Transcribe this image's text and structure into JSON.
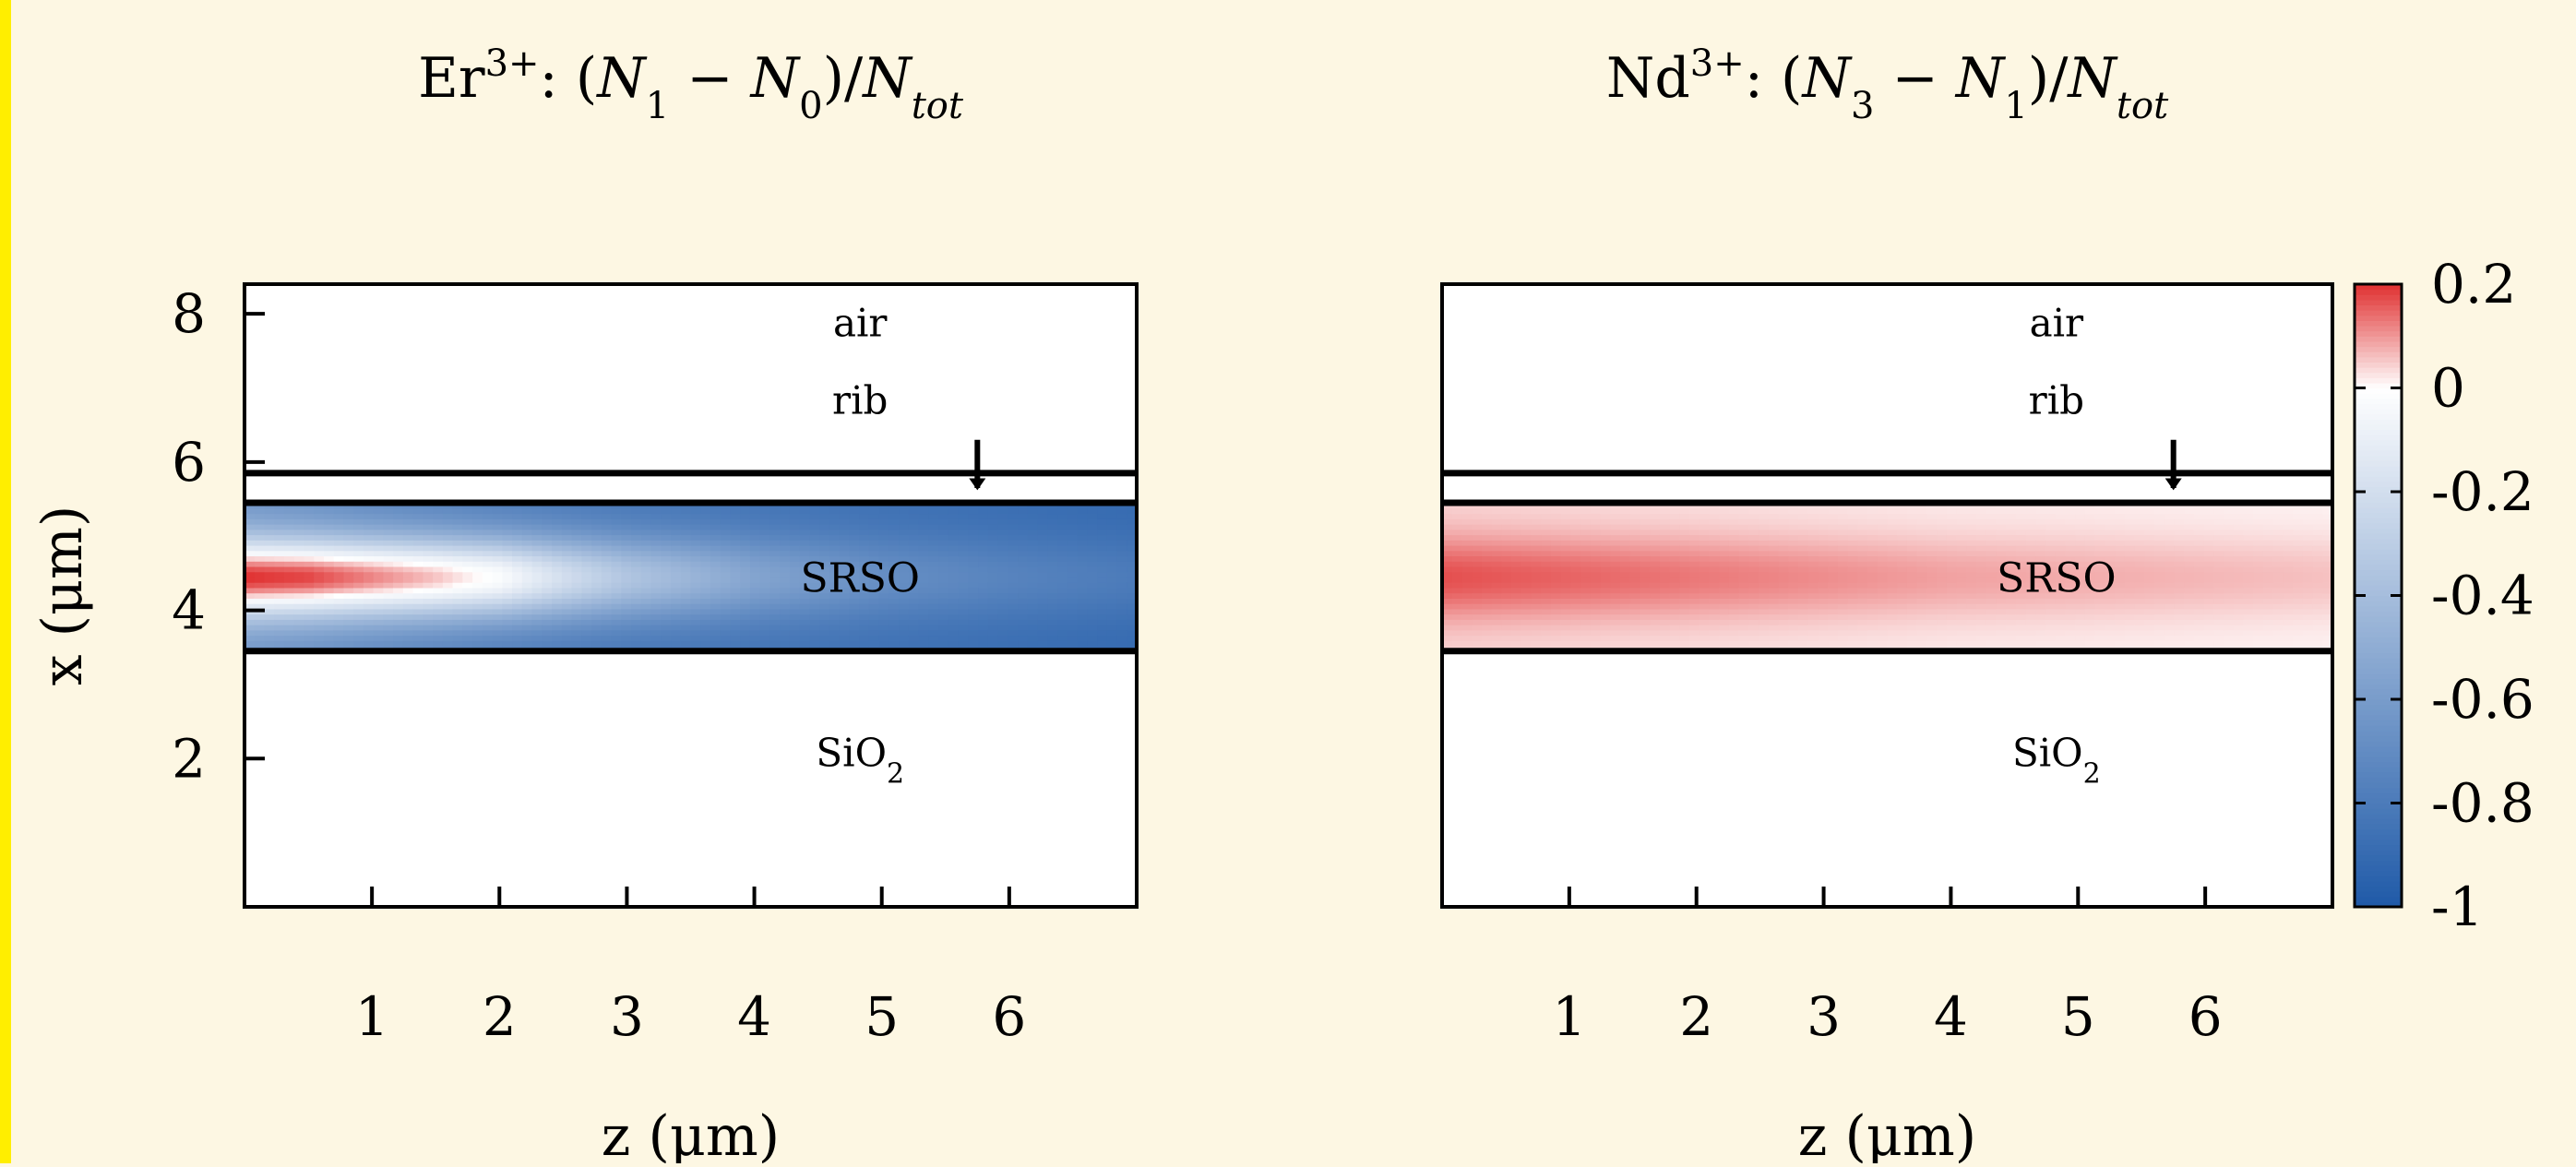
{
  "chart_data": [
    {
      "type": "heatmap",
      "title": "Er3+: (N1 − N0)/Ntot",
      "title_parts": {
        "element": "Er",
        "superscript": "3+",
        "expr_a": "N",
        "sub_a": "1",
        "expr_b": "N",
        "sub_b": "0",
        "denom": "N",
        "sub_denom": "tot"
      },
      "xlabel": "z (μm)",
      "ylabel": "x (μm)",
      "xlim": [
        0,
        7
      ],
      "ylim": [
        0,
        8.4
      ],
      "xticks": [
        1,
        2,
        3,
        4,
        5,
        6
      ],
      "yticks": [
        2,
        4,
        6,
        8
      ],
      "layers": [
        {
          "name": "air",
          "label": "air",
          "x_range": [
            5.85,
            8.4
          ]
        },
        {
          "name": "rib",
          "label": "rib",
          "x_range": [
            5.45,
            5.85
          ]
        },
        {
          "name": "SRSO",
          "label": "SRSO",
          "x_range": [
            3.45,
            5.45
          ]
        },
        {
          "name": "SiO2",
          "label": "SiO",
          "label_sub": "2",
          "x_range": [
            0,
            3.45
          ]
        }
      ],
      "boundaries": [
        5.85,
        5.45,
        3.45
      ],
      "rib_arrow_z": 5.75,
      "field": {
        "region_x": [
          3.45,
          5.45
        ],
        "z_samples": [
          0.0,
          0.5,
          1.0,
          1.5,
          2.0,
          2.5,
          3.0,
          4.0,
          5.0,
          6.0,
          7.0
        ],
        "core_values": [
          0.2,
          0.18,
          0.12,
          0.06,
          -0.02,
          -0.2,
          -0.35,
          -0.55,
          -0.68,
          -0.75,
          -0.8
        ],
        "edge_values": [
          -0.65,
          -0.68,
          -0.72,
          -0.75,
          -0.78,
          -0.8,
          -0.82,
          -0.84,
          -0.86,
          -0.88,
          -0.9
        ],
        "core_center_x": 4.45
      }
    },
    {
      "type": "heatmap",
      "title": "Nd3+: (N3 − N1)/Ntot",
      "title_parts": {
        "element": "Nd",
        "superscript": "3+",
        "expr_a": "N",
        "sub_a": "3",
        "expr_b": "N",
        "sub_b": "1",
        "denom": "N",
        "sub_denom": "tot"
      },
      "xlabel": "z (μm)",
      "ylabel": "",
      "xlim": [
        0,
        7
      ],
      "ylim": [
        0,
        8.4
      ],
      "xticks": [
        1,
        2,
        3,
        4,
        5,
        6
      ],
      "yticks": [],
      "layers": [
        {
          "name": "air",
          "label": "air",
          "x_range": [
            5.85,
            8.4
          ]
        },
        {
          "name": "rib",
          "label": "rib",
          "x_range": [
            5.45,
            5.85
          ]
        },
        {
          "name": "SRSO",
          "label": "SRSO",
          "x_range": [
            3.45,
            5.45
          ]
        },
        {
          "name": "SiO2",
          "label": "SiO",
          "label_sub": "2",
          "x_range": [
            0,
            3.45
          ]
        }
      ],
      "boundaries": [
        5.85,
        5.45,
        3.45
      ],
      "rib_arrow_z": 5.75,
      "field": {
        "region_x": [
          3.45,
          5.45
        ],
        "z_samples": [
          0.0,
          1.0,
          2.0,
          3.0,
          4.0,
          5.0,
          6.0,
          7.0
        ],
        "core_values": [
          0.17,
          0.15,
          0.13,
          0.11,
          0.09,
          0.08,
          0.07,
          0.06
        ],
        "edge_values": [
          0.04,
          0.035,
          0.03,
          0.025,
          0.02,
          0.018,
          0.015,
          0.012
        ],
        "core_center_x": 4.45
      }
    }
  ],
  "colorbar": {
    "range": [
      -1,
      0.2
    ],
    "tick_values": [
      0.2,
      0,
      -0.2,
      -0.4,
      -0.6,
      -0.8,
      -1
    ],
    "tick_labels": [
      "0.2",
      "0",
      "-0.2",
      "-0.4",
      "-0.6",
      "-0.8",
      "-1"
    ],
    "colors": {
      "max": "#e03030",
      "zero": "#ffffff",
      "min": "#1f5aa8"
    }
  }
}
